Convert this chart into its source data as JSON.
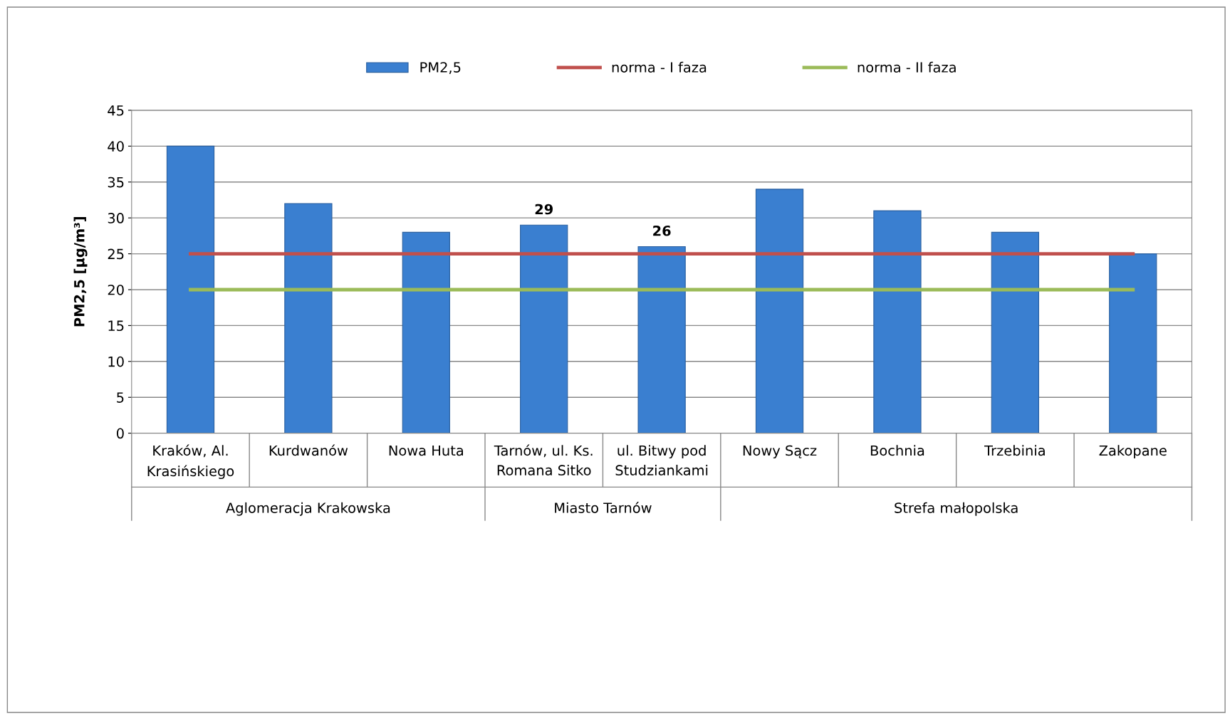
{
  "chart_data": {
    "type": "bar",
    "categories": [
      "Kraków, Al.\nKrasińskiego",
      "Kurdwanów",
      "Nowa Huta",
      "Tarnów, ul. Ks.\nRomana Sitko",
      "ul. Bitwy pod\nStudziankami",
      "Nowy Sącz",
      "Bochnia",
      "Trzebinia",
      "Zakopane"
    ],
    "series": [
      {
        "name": "PM2,5",
        "color": "#3a7fd0",
        "values": [
          40,
          32,
          28,
          29,
          26,
          34,
          31,
          28,
          25
        ],
        "value_labels": [
          null,
          null,
          null,
          "29",
          "26",
          null,
          null,
          null,
          null
        ]
      },
      {
        "name": "norma - I faza",
        "type": "line",
        "color": "#c0504d",
        "values": [
          25,
          25,
          25,
          25,
          25,
          25,
          25,
          25,
          25
        ]
      },
      {
        "name": "norma - II faza",
        "type": "line",
        "color": "#9bbb59",
        "values": [
          20,
          20,
          20,
          20,
          20,
          20,
          20,
          20,
          20
        ]
      }
    ],
    "ylabel": "PM2,5 [µg/m³]",
    "annotations": [
      "Aglomeracja Krakowska",
      "Miasto Tarnów",
      "Strefa małopolska"
    ],
    "ylim": [
      0,
      45
    ],
    "yticks": [
      0,
      5,
      10,
      15,
      20,
      25,
      30,
      35,
      40,
      45
    ],
    "grid": "y",
    "legend": "top",
    "marker": "none",
    "line_style": "solid"
  }
}
